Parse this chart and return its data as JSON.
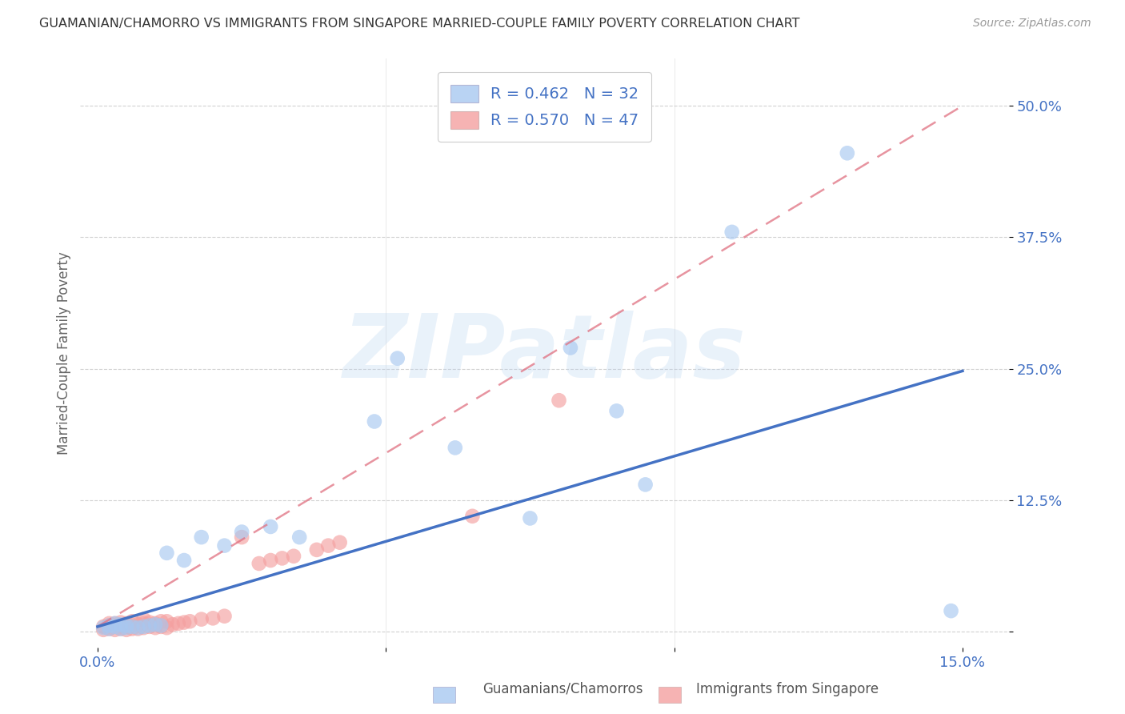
{
  "title": "GUAMANIAN/CHAMORRO VS IMMIGRANTS FROM SINGAPORE MARRIED-COUPLE FAMILY POVERTY CORRELATION CHART",
  "source": "Source: ZipAtlas.com",
  "xlim": [
    -0.003,
    0.158
  ],
  "ylim": [
    -0.015,
    0.545
  ],
  "legend_r1": "R = 0.462",
  "legend_n1": "N = 32",
  "legend_r2": "R = 0.570",
  "legend_n2": "N = 47",
  "color_blue": "#a8c8f0",
  "color_pink": "#f4a0a0",
  "color_blue_dark": "#4472c4",
  "color_pink_line": "#e07080",
  "color_axis_labels": "#4472c4",
  "watermark": "ZIPatlas",
  "blue_x": [
    0.001,
    0.002,
    0.002,
    0.003,
    0.003,
    0.004,
    0.004,
    0.005,
    0.005,
    0.006,
    0.007,
    0.008,
    0.009,
    0.01,
    0.011,
    0.012,
    0.015,
    0.018,
    0.022,
    0.025,
    0.03,
    0.035,
    0.048,
    0.052,
    0.062,
    0.075,
    0.082,
    0.09,
    0.095,
    0.11,
    0.13,
    0.148
  ],
  "blue_y": [
    0.004,
    0.003,
    0.006,
    0.005,
    0.008,
    0.003,
    0.007,
    0.004,
    0.006,
    0.005,
    0.004,
    0.005,
    0.006,
    0.007,
    0.006,
    0.075,
    0.068,
    0.09,
    0.082,
    0.095,
    0.1,
    0.09,
    0.2,
    0.26,
    0.175,
    0.108,
    0.27,
    0.21,
    0.14,
    0.38,
    0.455,
    0.02
  ],
  "pink_x": [
    0.001,
    0.001,
    0.002,
    0.002,
    0.002,
    0.003,
    0.003,
    0.003,
    0.004,
    0.004,
    0.004,
    0.005,
    0.005,
    0.005,
    0.006,
    0.006,
    0.006,
    0.007,
    0.007,
    0.008,
    0.008,
    0.008,
    0.009,
    0.009,
    0.01,
    0.01,
    0.011,
    0.011,
    0.012,
    0.012,
    0.013,
    0.014,
    0.015,
    0.016,
    0.018,
    0.02,
    0.022,
    0.025,
    0.028,
    0.03,
    0.032,
    0.034,
    0.038,
    0.04,
    0.042,
    0.065,
    0.08
  ],
  "pink_y": [
    0.002,
    0.005,
    0.003,
    0.006,
    0.008,
    0.002,
    0.005,
    0.008,
    0.003,
    0.006,
    0.009,
    0.002,
    0.005,
    0.008,
    0.003,
    0.006,
    0.01,
    0.003,
    0.007,
    0.004,
    0.008,
    0.012,
    0.005,
    0.009,
    0.004,
    0.008,
    0.005,
    0.01,
    0.004,
    0.01,
    0.007,
    0.008,
    0.009,
    0.01,
    0.012,
    0.013,
    0.015,
    0.09,
    0.065,
    0.068,
    0.07,
    0.072,
    0.078,
    0.082,
    0.085,
    0.11,
    0.22
  ],
  "blue_line_x": [
    0.0,
    0.15
  ],
  "blue_line_y": [
    0.005,
    0.248
  ],
  "pink_line_x": [
    0.0,
    0.15
  ],
  "pink_line_y": [
    0.005,
    0.5
  ],
  "grid_color": "#cccccc",
  "background_color": "#ffffff"
}
